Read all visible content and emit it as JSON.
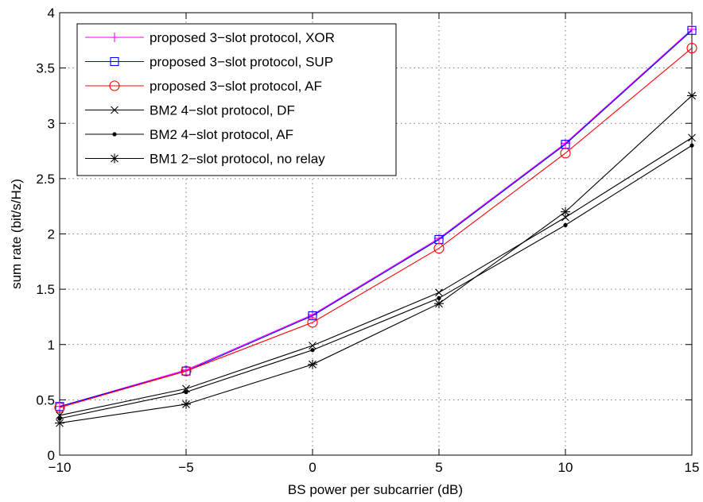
{
  "chart_data": {
    "type": "line",
    "xlabel": "BS power per subcarrier (dB)",
    "ylabel": "sum rate (bit/s/Hz)",
    "xlim": [
      -10,
      15
    ],
    "ylim": [
      0,
      4
    ],
    "xticks": [
      -10,
      -5,
      0,
      5,
      10,
      15
    ],
    "xtick_labels": [
      "−10",
      "−5",
      "0",
      "5",
      "10",
      "15"
    ],
    "yticks": [
      0,
      0.5,
      1,
      1.5,
      2,
      2.5,
      3,
      3.5,
      4
    ],
    "ytick_labels": [
      "0",
      "0.5",
      "1",
      "1.5",
      "2",
      "2.5",
      "3",
      "3.5",
      "4"
    ],
    "grid": true,
    "legend_position": "top-left",
    "x": [
      -10,
      -5,
      0,
      5,
      10,
      15
    ],
    "series": [
      {
        "name": "proposed 3−slot protocol, XOR",
        "color": "#ff00ff",
        "marker": "plus",
        "values": [
          0.44,
          0.77,
          1.27,
          1.96,
          2.82,
          3.85
        ]
      },
      {
        "name": "proposed 3−slot protocol, SUP",
        "color": "#0000ff",
        "marker": "square",
        "values": [
          0.44,
          0.76,
          1.26,
          1.95,
          2.81,
          3.84
        ]
      },
      {
        "name": "proposed 3−slot protocol, AF",
        "color": "#ff0000",
        "marker": "circle",
        "values": [
          0.43,
          0.76,
          1.2,
          1.87,
          2.73,
          3.68
        ]
      },
      {
        "name": "BM2 4−slot protocol, DF",
        "color": "#000000",
        "marker": "x",
        "values": [
          0.36,
          0.6,
          0.99,
          1.47,
          2.15,
          2.87
        ]
      },
      {
        "name": "BM2 4−slot protocol, AF",
        "color": "#000000",
        "marker": "dot",
        "values": [
          0.33,
          0.57,
          0.95,
          1.42,
          2.08,
          2.8
        ]
      },
      {
        "name": "BM1 2−slot protocol, no relay",
        "color": "#000000",
        "marker": "star",
        "values": [
          0.29,
          0.46,
          0.82,
          1.37,
          2.2,
          3.25
        ]
      }
    ]
  }
}
